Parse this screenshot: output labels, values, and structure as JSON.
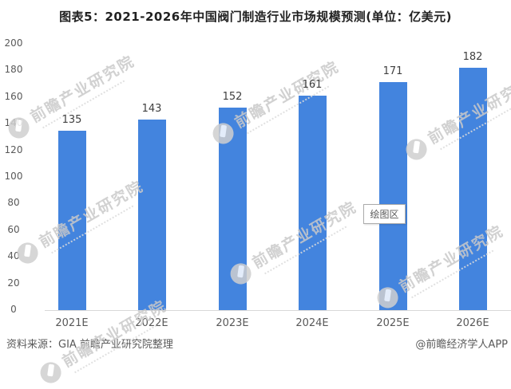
{
  "title": "图表5：2021-2026年中国阀门制造行业市场规模预测(单位：亿美元)",
  "chart_data": {
    "type": "bar",
    "title": "图表5：2021-2026年中国阀门制造行业市场规模预测(单位：亿美元)",
    "unit": "亿美元",
    "categories": [
      "2021E",
      "2022E",
      "2023E",
      "2024E",
      "2025E",
      "2026E"
    ],
    "values": [
      135,
      143,
      152,
      161,
      171,
      182
    ],
    "xlabel": "",
    "ylabel": "",
    "ylim": [
      0,
      200
    ],
    "yticks": [
      0,
      20,
      40,
      60,
      80,
      100,
      120,
      140,
      160,
      180,
      200
    ],
    "bar_color": "#4384DE",
    "grid": false,
    "legend_position": "none"
  },
  "tooltip": {
    "label": "绘图区"
  },
  "watermark": {
    "text": "前瞻产业研究院"
  },
  "footer": {
    "source": "资料来源：GIA 前瞻产业研究院整理",
    "credit": "@前瞻经济学人APP"
  }
}
